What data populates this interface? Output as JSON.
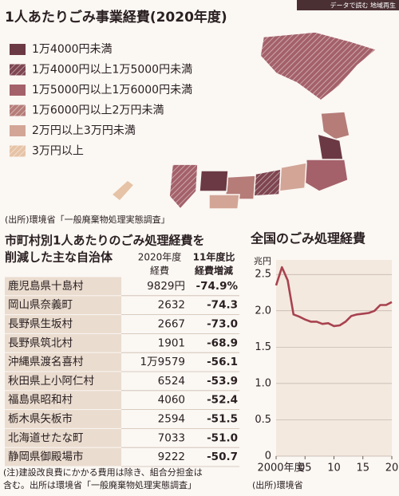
{
  "tag": "データで読む 地域再生",
  "map": {
    "title": "1人あたりごみ事業経費(2020年度)",
    "legend": [
      {
        "label": "1万4000円未満",
        "color": "#6b3944",
        "hatch": false
      },
      {
        "label": "1万4000円以上1万5000円未満",
        "color": "#7e4550",
        "hatch": true
      },
      {
        "label": "1万5000円以上1万6000円未満",
        "color": "#a4616a",
        "hatch": false
      },
      {
        "label": "1万6000円以上2万円未満",
        "color": "#b57c78",
        "hatch": true
      },
      {
        "label": "2万円以上3万円未満",
        "color": "#d2a596",
        "hatch": false
      },
      {
        "label": "3万円以上",
        "color": "#e6c3a6",
        "hatch": true
      }
    ],
    "source": "(出所)環境省「一般廃棄物処理実態調査」"
  },
  "table": {
    "title": [
      "市町村別1人あたりのごみ処理経費を",
      "削減した主な自治体"
    ],
    "headers": [
      [
        "2020年度",
        "経費"
      ],
      [
        "11年度比",
        "経費増減"
      ]
    ],
    "rows": [
      [
        "鹿児島県十島村",
        "9829円",
        "-74.9%"
      ],
      [
        "岡山県奈義町",
        "2632",
        "-74.3"
      ],
      [
        "長野県生坂村",
        "2667",
        "-73.0"
      ],
      [
        "長野県筑北村",
        "1901",
        "-68.9"
      ],
      [
        "沖縄県渡名喜村",
        "1万9579",
        "-56.1"
      ],
      [
        "秋田県上小阿仁村",
        "6524",
        "-53.9"
      ],
      [
        "福島県昭和村",
        "4060",
        "-52.4"
      ],
      [
        "栃木県矢板市",
        "2594",
        "-51.5"
      ],
      [
        "北海道せたな町",
        "7033",
        "-51.0"
      ],
      [
        "静岡県御殿場市",
        "9222",
        "-50.7"
      ]
    ],
    "note": [
      "(注)建設改良費にかかる費用は除き、組合分担金は",
      "含む。出所は環境省「一般廃棄物処理実態調査」"
    ]
  },
  "chart_data": {
    "type": "line",
    "title": "全国のごみ処理経費",
    "y_unit": "兆円",
    "x": [
      2000,
      2001,
      2002,
      2003,
      2004,
      2005,
      2006,
      2007,
      2008,
      2009,
      2010,
      2011,
      2012,
      2013,
      2014,
      2015,
      2016,
      2017,
      2018,
      2019,
      2020
    ],
    "values": [
      2.35,
      2.6,
      2.42,
      1.95,
      1.92,
      1.88,
      1.85,
      1.85,
      1.82,
      1.83,
      1.79,
      1.8,
      1.85,
      1.93,
      1.95,
      1.96,
      1.97,
      2.0,
      2.08,
      2.08,
      2.12
    ],
    "color": "#a8424f",
    "xlim": [
      2000,
      2020
    ],
    "ylim": [
      0,
      2.7
    ],
    "xticks": [
      {
        "value": 2000,
        "label": "2000年度"
      },
      {
        "value": 2005,
        "label": "05"
      },
      {
        "value": 2010,
        "label": "10"
      },
      {
        "value": 2015,
        "label": "15"
      },
      {
        "value": 2020,
        "label": "20"
      }
    ],
    "yticks": [
      0,
      {
        "value": 0.5,
        "label": "0.5"
      },
      {
        "value": 1,
        "label": "1.0"
      },
      {
        "value": 1.5,
        "label": "1.5"
      },
      {
        "value": 2,
        "label": "2.0"
      },
      {
        "value": 2.5,
        "label": "2.5"
      }
    ],
    "grid": true,
    "source": "(出所)環境省"
  }
}
